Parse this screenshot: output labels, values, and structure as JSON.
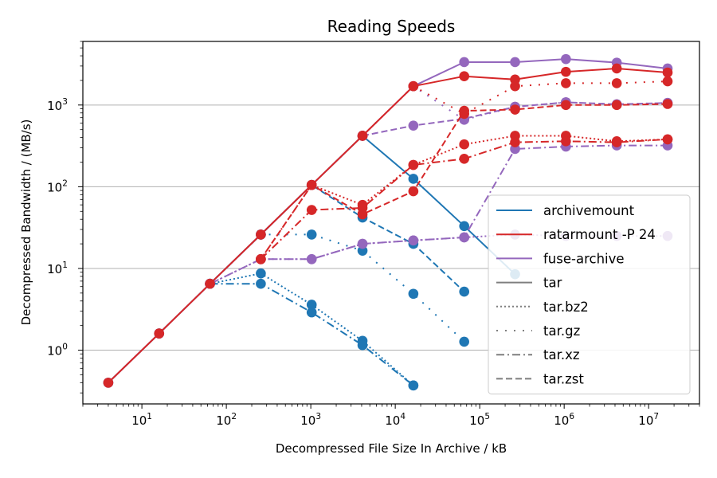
{
  "chart_data": {
    "type": "line",
    "title": "Reading Speeds",
    "xlabel": "Decompressed File Size In Archive / kB",
    "ylabel": "Decompressed Bandwidth / (MB/s)",
    "x_scale": "log",
    "y_scale": "log",
    "xlim": [
      2,
      40000000
    ],
    "ylim": [
      0.22,
      6000
    ],
    "x_ticks": [
      {
        "value": 10,
        "base": "10",
        "exp": "1"
      },
      {
        "value": 100,
        "base": "10",
        "exp": "2"
      },
      {
        "value": 1000,
        "base": "10",
        "exp": "3"
      },
      {
        "value": 10000,
        "base": "10",
        "exp": "4"
      },
      {
        "value": 100000,
        "base": "10",
        "exp": "5"
      },
      {
        "value": 1000000,
        "base": "10",
        "exp": "6"
      },
      {
        "value": 10000000,
        "base": "10",
        "exp": "7"
      }
    ],
    "y_ticks": [
      {
        "value": 1,
        "base": "10",
        "exp": "0"
      },
      {
        "value": 10,
        "base": "10",
        "exp": "1"
      },
      {
        "value": 100,
        "base": "10",
        "exp": "2"
      },
      {
        "value": 1000,
        "base": "10",
        "exp": "3"
      }
    ],
    "grid": "horizontal major",
    "legend_position": "lower-right",
    "legend": [
      {
        "label": "archivemount",
        "color": "#1f77b4",
        "dash": "solid"
      },
      {
        "label": "ratarmount -P 24",
        "color": "#d62728",
        "dash": "solid"
      },
      {
        "label": "fuse-archive",
        "color": "#9467bd",
        "dash": "solid"
      },
      {
        "label": "tar",
        "color": "#7f7f7f",
        "dash": "solid"
      },
      {
        "label": "tar.bz2",
        "color": "#7f7f7f",
        "dash": "dotted"
      },
      {
        "label": "tar.gz",
        "color": "#7f7f7f",
        "dash": "loosedot"
      },
      {
        "label": "tar.xz",
        "color": "#7f7f7f",
        "dash": "dashdot"
      },
      {
        "label": "tar.zst",
        "color": "#7f7f7f",
        "dash": "dashed"
      }
    ],
    "series": [
      {
        "tool": "archivemount",
        "format": "tar",
        "color": "#1f77b4",
        "dash": "solid",
        "x": [
          4,
          16,
          64,
          256,
          1024,
          4096,
          16384,
          65536,
          262144
        ],
        "y": [
          0.4,
          1.6,
          6.5,
          26,
          105,
          420,
          125,
          33,
          8.5
        ]
      },
      {
        "tool": "archivemount",
        "format": "tar.bz2",
        "color": "#1f77b4",
        "dash": "dotted",
        "x": [
          64,
          256,
          1024,
          4096,
          16384
        ],
        "y": [
          6.5,
          8.7,
          3.6,
          1.3,
          0.37
        ]
      },
      {
        "tool": "archivemount",
        "format": "tar.gz",
        "color": "#1f77b4",
        "dash": "loosedot",
        "x": [
          64,
          256,
          1024,
          4096,
          16384,
          65536
        ],
        "y": [
          6.5,
          26,
          26,
          16.5,
          4.9,
          1.27
        ]
      },
      {
        "tool": "archivemount",
        "format": "tar.xz",
        "color": "#1f77b4",
        "dash": "dashdot",
        "x": [
          64,
          256,
          1024,
          4096,
          16384
        ],
        "y": [
          6.5,
          6.5,
          2.9,
          1.15,
          0.37
        ]
      },
      {
        "tool": "archivemount",
        "format": "tar.zst",
        "color": "#1f77b4",
        "dash": "dashed",
        "x": [
          64,
          256,
          1024,
          4096,
          16384,
          65536
        ],
        "y": [
          6.5,
          26,
          105,
          42,
          20,
          5.2
        ]
      },
      {
        "tool": "fuse-archive",
        "format": "tar",
        "color": "#9467bd",
        "dash": "solid",
        "x": [
          4,
          16,
          64,
          256,
          1024,
          4096,
          16384,
          65536,
          262144,
          1048576,
          4194304,
          16777216
        ],
        "y": [
          0.4,
          1.6,
          6.5,
          26,
          105,
          420,
          1700,
          3350,
          3350,
          3650,
          3300,
          2800
        ]
      },
      {
        "tool": "fuse-archive",
        "format": "tar.bz2",
        "color": "#9467bd",
        "dash": "dotted",
        "x": [
          64,
          256,
          1024,
          4096,
          16384,
          65536,
          262144,
          1048576,
          4194304,
          16777216
        ],
        "y": [
          6.5,
          13,
          13,
          20,
          22,
          24,
          26,
          25,
          25,
          25
        ]
      },
      {
        "tool": "fuse-archive",
        "format": "tar.gz",
        "color": "#9467bd",
        "dash": "loosedot",
        "x": [
          4096,
          16384,
          65536,
          262144,
          1048576,
          4194304,
          16777216
        ],
        "y": [
          420,
          1700,
          660,
          950,
          1080,
          1020,
          1060
        ]
      },
      {
        "tool": "fuse-archive",
        "format": "tar.xz",
        "color": "#9467bd",
        "dash": "dashdot",
        "x": [
          64,
          256,
          1024,
          4096,
          16384,
          65536,
          262144,
          1048576,
          4194304,
          16777216
        ],
        "y": [
          6.5,
          13,
          13,
          20,
          22,
          24,
          290,
          310,
          320,
          320
        ]
      },
      {
        "tool": "fuse-archive",
        "format": "tar.zst",
        "color": "#9467bd",
        "dash": "dashed",
        "x": [
          4096,
          16384,
          65536,
          262144,
          1048576,
          4194304,
          16777216
        ],
        "y": [
          420,
          560,
          680,
          950,
          1080,
          1020,
          1060
        ]
      },
      {
        "tool": "ratarmount -P 24",
        "format": "tar",
        "color": "#d62728",
        "dash": "solid",
        "x": [
          4,
          16,
          64,
          256,
          1024,
          4096,
          16384,
          65536,
          262144,
          1048576,
          4194304,
          16777216
        ],
        "y": [
          0.4,
          1.6,
          6.5,
          26,
          105,
          420,
          1700,
          2250,
          2050,
          2550,
          2800,
          2500
        ]
      },
      {
        "tool": "ratarmount -P 24",
        "format": "tar.bz2",
        "color": "#d62728",
        "dash": "dotted",
        "x": [
          256,
          1024,
          4096,
          16384,
          65536,
          262144,
          1048576,
          4194304,
          16777216
        ],
        "y": [
          13,
          105,
          60,
          185,
          330,
          420,
          420,
          360,
          380
        ]
      },
      {
        "tool": "ratarmount -P 24",
        "format": "tar.gz",
        "color": "#d62728",
        "dash": "loosedot",
        "x": [
          4096,
          16384,
          65536,
          262144,
          1048576,
          4194304,
          16777216
        ],
        "y": [
          420,
          1700,
          780,
          1700,
          1850,
          1850,
          1950
        ]
      },
      {
        "tool": "ratarmount -P 24",
        "format": "tar.xz",
        "color": "#d62728",
        "dash": "dashdot",
        "x": [
          256,
          1024,
          4096,
          16384,
          65536,
          262144,
          1048576,
          4194304,
          16777216
        ],
        "y": [
          13,
          52,
          55,
          185,
          220,
          350,
          360,
          350,
          380
        ]
      },
      {
        "tool": "ratarmount -P 24",
        "format": "tar.zst",
        "color": "#d62728",
        "dash": "dashed",
        "x": [
          256,
          1024,
          4096,
          16384,
          65536,
          262144,
          1048576,
          4194304,
          16777216
        ],
        "y": [
          13,
          105,
          46,
          88,
          850,
          880,
          1000,
          1000,
          1030
        ]
      }
    ]
  }
}
